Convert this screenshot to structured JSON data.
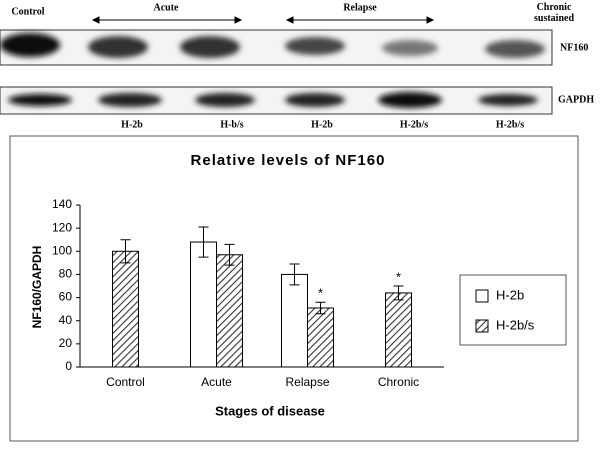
{
  "blot": {
    "groups": [
      "Control",
      "Acute",
      "Relapse",
      "Chronic sustained"
    ],
    "rows": [
      "NF160",
      "GAPDH"
    ],
    "lanes": [
      "H-2b",
      "H-b/s",
      "H-2b",
      "H-2b/s",
      "H-2b/s"
    ]
  },
  "chart_data": {
    "type": "bar",
    "title": "Relative levels of NF160",
    "xlabel": "Stages of disease",
    "ylabel": "NF160/GAPDH",
    "categories": [
      "Control",
      "Acute",
      "Relapse",
      "Chronic"
    ],
    "series": [
      {
        "name": "H-2b",
        "color": "#ffffff",
        "values": [
          null,
          108,
          80,
          null
        ],
        "errors": [
          null,
          13,
          9,
          null
        ]
      },
      {
        "name": "H-2b/s",
        "color": "hatch",
        "values": [
          100,
          97,
          51,
          64
        ],
        "errors": [
          10,
          9,
          5,
          6
        ]
      }
    ],
    "annotations": [
      {
        "text": "*",
        "category": "Relapse",
        "series": "H-2b/s"
      },
      {
        "text": "*",
        "category": "Chronic",
        "series": "H-2b/s"
      }
    ],
    "ylim": [
      0,
      140
    ],
    "yticks": [
      0,
      20,
      40,
      60,
      80,
      100,
      120,
      140
    ],
    "legend": "right"
  }
}
